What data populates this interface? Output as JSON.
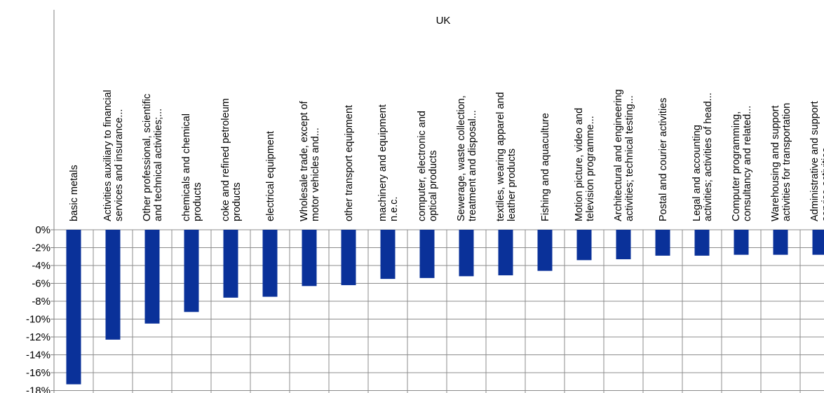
{
  "chart_data": {
    "type": "bar",
    "title": "UK",
    "xlabel": "",
    "ylabel": "",
    "ylim": [
      -18,
      0
    ],
    "yticks": [
      0,
      -2,
      -4,
      -6,
      -8,
      -10,
      -12,
      -14,
      -16,
      -18
    ],
    "ytick_labels": [
      "0%",
      "-2%",
      "-4%",
      "-6%",
      "-8%",
      "-10%",
      "-12%",
      "-14%",
      "-16%",
      "-18%"
    ],
    "grid": true,
    "legend": "none",
    "bar_color": "#0a3199",
    "categories": [
      [
        "basic metals"
      ],
      [
        "Activities auxiliary to financial",
        "services and insurance..."
      ],
      [
        "Other professional, scientific",
        "and technical activities;..."
      ],
      [
        "chemicals and chemical",
        "products"
      ],
      [
        "coke and refined petroleum",
        "products"
      ],
      [
        "electrical equipment"
      ],
      [
        "Wholesale trade, except of",
        "motor vehicles and..."
      ],
      [
        "other transport equipment"
      ],
      [
        "machinery and equipment",
        "n.e.c."
      ],
      [
        "computer, electronic and",
        "optical products"
      ],
      [
        "Sewerage, waste collection,",
        "treatment and disposal..."
      ],
      [
        "textiles, wearing apparel and",
        "leather products"
      ],
      [
        "Fishing and aquaculture"
      ],
      [
        "Motion picture, video and",
        "television programme..."
      ],
      [
        "Architectural and engineering",
        "activities; technical testing..."
      ],
      [
        "Postal and courier activities"
      ],
      [
        "Legal and accounting",
        "activities; activities of head..."
      ],
      [
        "Computer programming,",
        "consultancy and related..."
      ],
      [
        "Warehousing and support",
        "activities for transportation"
      ],
      [
        "Administrative and support",
        "service activities"
      ]
    ],
    "values": [
      -17.3,
      -12.3,
      -10.5,
      -9.2,
      -7.6,
      -7.5,
      -6.3,
      -6.2,
      -5.5,
      -5.4,
      -5.2,
      -5.1,
      -4.6,
      -3.4,
      -3.3,
      -2.9,
      -2.9,
      -2.8,
      -2.8,
      -2.8
    ]
  }
}
